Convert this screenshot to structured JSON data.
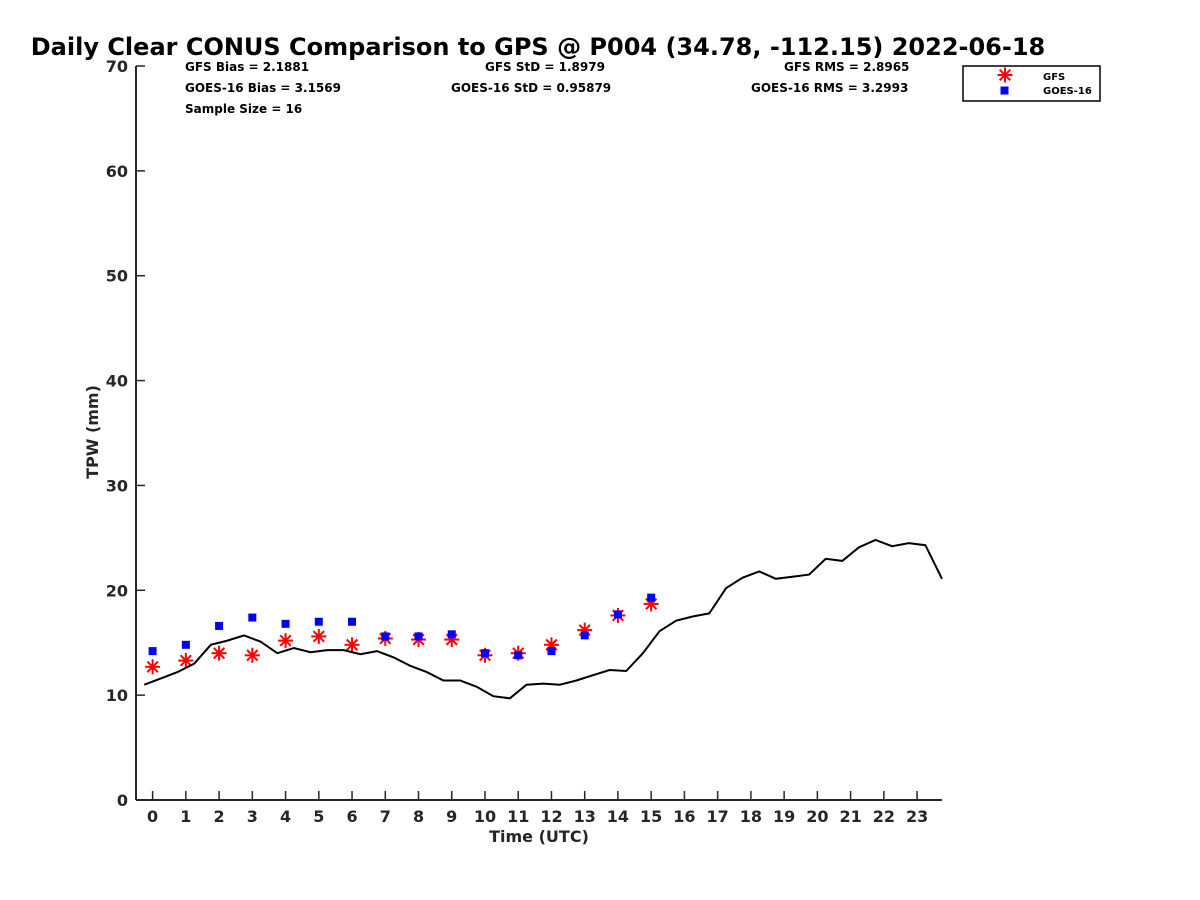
{
  "chart_data": {
    "type": "scatter",
    "title": "Daily Clear CONUS Comparison to GPS @ P004 (34.78, -112.15) 2022-06-18",
    "xlabel": "Time (UTC)",
    "ylabel": "TPW (mm)",
    "xlim": [
      -0.5,
      23.75
    ],
    "ylim": [
      0,
      70
    ],
    "xticks": [
      0,
      1,
      2,
      3,
      4,
      5,
      6,
      7,
      8,
      9,
      10,
      11,
      12,
      13,
      14,
      15,
      16,
      17,
      18,
      19,
      20,
      21,
      22,
      23
    ],
    "yticks": [
      0,
      10,
      20,
      30,
      40,
      50,
      60,
      70
    ],
    "grid": false,
    "legend_position": "top-right, outside plot",
    "stats": {
      "gfs_bias": "GFS Bias = 2.1881",
      "goes_bias": "GOES-16 Bias = 3.1569",
      "sample_size": "Sample Size = 16",
      "gfs_std": "GFS StD = 1.8979",
      "goes_std": "GOES-16 StD = 0.95879",
      "gfs_rms": "GFS RMS = 2.8965",
      "goes_rms": "GOES-16 RMS = 3.2993"
    },
    "series": [
      {
        "name": "GFS",
        "marker": "asterisk",
        "color": "#ff0000",
        "x": [
          0,
          1,
          2,
          3,
          4,
          5,
          6,
          7,
          8,
          9,
          10,
          11,
          12,
          13,
          14,
          15
        ],
        "y": [
          12.7,
          13.3,
          14.0,
          13.8,
          15.2,
          15.6,
          14.8,
          15.4,
          15.3,
          15.3,
          13.8,
          14.0,
          14.8,
          16.2,
          17.6,
          18.7
        ]
      },
      {
        "name": "GOES-16",
        "marker": "square",
        "color": "#0000ff",
        "x": [
          0,
          1,
          2,
          3,
          4,
          5,
          6,
          7,
          8,
          9,
          10,
          11,
          12,
          13,
          14,
          15
        ],
        "y": [
          14.2,
          14.8,
          16.6,
          17.4,
          16.8,
          17.0,
          17.0,
          15.6,
          15.6,
          15.8,
          14.0,
          13.8,
          14.2,
          15.7,
          17.7,
          19.3
        ]
      },
      {
        "marker": "line",
        "color": "#000000",
        "x": [
          -0.25,
          0.25,
          0.75,
          1.25,
          1.75,
          2.25,
          2.75,
          3.25,
          3.75,
          4.25,
          4.75,
          5.25,
          5.75,
          6.25,
          6.75,
          7.25,
          7.75,
          8.25,
          8.75,
          9.25,
          9.75,
          10.25,
          10.75,
          11.25,
          11.75,
          12.25,
          12.75,
          13.25,
          13.75,
          14.25,
          14.75,
          15.25,
          15.75,
          16.25,
          16.75,
          17.25,
          17.75,
          18.25,
          18.75,
          19.25,
          19.75,
          20.25,
          20.75,
          21.25,
          21.75,
          22.25,
          22.75,
          23.25,
          23.75
        ],
        "y": [
          11.0,
          11.6,
          12.2,
          13.0,
          14.8,
          15.2,
          15.7,
          15.1,
          14.0,
          14.5,
          14.1,
          14.3,
          14.3,
          13.9,
          14.2,
          13.6,
          12.8,
          12.2,
          11.4,
          11.4,
          10.8,
          9.9,
          9.7,
          11.0,
          11.1,
          11.0,
          11.4,
          11.9,
          12.4,
          12.3,
          14.0,
          16.1,
          17.1,
          17.5,
          17.8,
          20.2,
          21.2,
          21.8,
          21.1,
          21.3,
          21.5,
          23.0,
          22.8,
          24.1,
          24.8,
          24.2,
          24.5,
          24.3,
          21.1
        ]
      }
    ]
  }
}
